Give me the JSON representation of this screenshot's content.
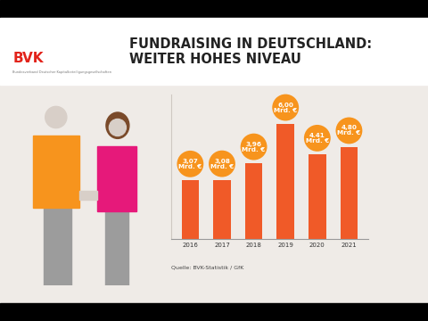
{
  "chart_data": {
    "type": "bar",
    "title": "FUNDRAISING IN DEUTSCHLAND:\nWEITER HOHES NIVEAU",
    "categories": [
      "2016",
      "2017",
      "2018",
      "2019",
      "2020",
      "2021"
    ],
    "values": [
      3.07,
      3.08,
      3.96,
      6.0,
      4.41,
      4.8
    ],
    "value_labels": [
      "3,07\nMrd. €",
      "3,08\nMrd. €",
      "3,96\nMrd. €",
      "6,00\nMrd. €",
      "4.41\nMrd. €",
      "4,80\nMrd. €"
    ],
    "data_labels": true,
    "color": "#f05a28",
    "ylim": [
      0,
      7.5
    ],
    "tick_labels": "x",
    "grid": false,
    "annotations": [
      "Quelle: BVK-Statistik / GfK",
      "BVK",
      "Bundesverband Deutscher Kapitalbeteiligungsgesellschaften"
    ]
  }
}
